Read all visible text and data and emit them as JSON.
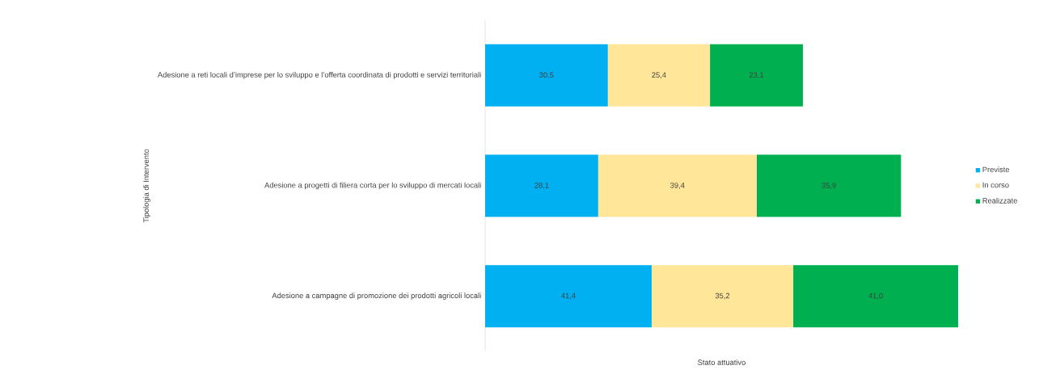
{
  "chart_data": {
    "type": "bar",
    "orientation": "horizontal",
    "stacked": true,
    "xlabel": "Stato attuativo",
    "ylabel": "Tipologia di Intervento",
    "legend": "right",
    "categories": [
      "Adesione a reti locali d’imprese per lo sviluppo e l’offerta coordinata di prodotti e servizi territoriali",
      "Adesione a progetti di filiera corta per lo sviluppo di mercati locali",
      "Adesione a campagne di promozione dei prodotti agricoli locali"
    ],
    "series": [
      {
        "name": "Previste",
        "color": "#00b0f0",
        "values": [
          30.5,
          28.1,
          41.4
        ],
        "value_labels": [
          "30,5",
          "28,1",
          "41,4"
        ]
      },
      {
        "name": "In corso",
        "color": "#ffe699",
        "values": [
          25.4,
          39.4,
          35.2
        ],
        "value_labels": [
          "25,4",
          "39,4",
          "35,2"
        ]
      },
      {
        "name": "Realizzate",
        "color": "#00b050",
        "values": [
          23.1,
          35.9,
          41.0
        ],
        "value_labels": [
          "23,1",
          "35,9",
          "41,0"
        ]
      }
    ]
  }
}
